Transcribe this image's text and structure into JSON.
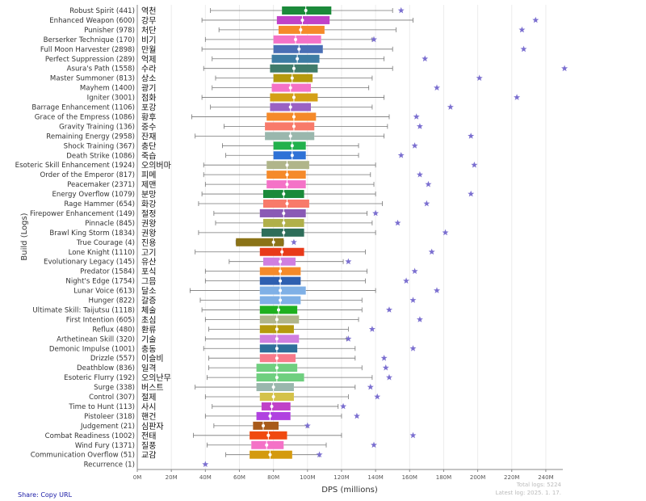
{
  "ui": {
    "share_text": "Share: Copy URL",
    "total_logs": "Total logs: 5224",
    "latest_log": "Latest log: 2025. 1. 17."
  },
  "chart_data": {
    "type": "boxplot",
    "orientation": "horizontal",
    "xlabel": "DPS (millions)",
    "ylabel": "Build (Logs)",
    "xlim": [
      0,
      250
    ],
    "x_ticks": [
      0,
      20,
      40,
      60,
      80,
      100,
      120,
      140,
      160,
      180,
      200,
      220,
      240
    ],
    "x_tick_labels": [
      "0M",
      "20M",
      "40M",
      "60M",
      "80M",
      "100M",
      "120M",
      "140M",
      "160M",
      "180M",
      "200M",
      "220M",
      "240M"
    ],
    "grid": "vertical",
    "outlier_marker": "star",
    "outlier_color": "#7b6fd0",
    "items": [
      {
        "label": "Robust Spirit (441)",
        "kr": "역천",
        "color": "#1b8a3a",
        "min": 43,
        "q1": 85,
        "median": 99,
        "q3": 114,
        "max": 150,
        "mean": 99,
        "outliers": [
          155
        ]
      },
      {
        "label": "Enhanced Weapon (600)",
        "kr": "강무",
        "color": "#c042c8",
        "min": 38,
        "q1": 82,
        "median": 97,
        "q3": 113,
        "max": 162,
        "mean": 97,
        "outliers": [
          234
        ]
      },
      {
        "label": "Punisher (978)",
        "kr": "처단",
        "color": "#f58a2a",
        "min": 48,
        "q1": 83,
        "median": 96,
        "q3": 110,
        "max": 152,
        "mean": 96,
        "outliers": [
          226
        ]
      },
      {
        "label": "Berserker Technique (170)",
        "kr": "비기",
        "color": "#f472c7",
        "min": 40,
        "q1": 80,
        "median": 93,
        "q3": 108,
        "max": 138,
        "mean": 93,
        "outliers": [
          139
        ]
      },
      {
        "label": "Full Moon Harvester (2898)",
        "kr": "만월",
        "color": "#4a6fb5",
        "min": 38,
        "q1": 80,
        "median": 95,
        "q3": 109,
        "max": 150,
        "mean": 95,
        "outliers": [
          227
        ]
      },
      {
        "label": "Perfect Suppression (289)",
        "kr": "억제",
        "color": "#3d7ca3",
        "min": 44,
        "q1": 79,
        "median": 94,
        "q3": 107,
        "max": 145,
        "mean": 94,
        "outliers": [
          169
        ]
      },
      {
        "label": "Asura's Path (1558)",
        "kr": "수라",
        "color": "#3f7b6a",
        "min": 39,
        "q1": 78,
        "median": 92,
        "q3": 106,
        "max": 150,
        "mean": 92,
        "outliers": [
          251
        ]
      },
      {
        "label": "Master Summoner (813)",
        "kr": "상소",
        "color": "#b59a0e",
        "min": 46,
        "q1": 80,
        "median": 91,
        "q3": 103,
        "max": 138,
        "mean": 91,
        "outliers": [
          201
        ]
      },
      {
        "label": "Mayhem (1400)",
        "kr": "광기",
        "color": "#f472c7",
        "min": 44,
        "q1": 79,
        "median": 90,
        "q3": 102,
        "max": 136,
        "mean": 90,
        "outliers": [
          176
        ]
      },
      {
        "label": "Igniter (3001)",
        "kr": "점화",
        "color": "#d4a017",
        "min": 38,
        "q1": 78,
        "median": 92,
        "q3": 106,
        "max": 145,
        "mean": 92,
        "outliers": [
          223
        ]
      },
      {
        "label": "Barrage Enhancement (1106)",
        "kr": "포강",
        "color": "#9a62c4",
        "min": 43,
        "q1": 78,
        "median": 90,
        "q3": 102,
        "max": 138,
        "mean": 90,
        "outliers": [
          184
        ]
      },
      {
        "label": "Grace of the Empress (1086)",
        "kr": "황후",
        "color": "#f58a2a",
        "min": 32,
        "q1": 76,
        "median": 92,
        "q3": 105,
        "max": 148,
        "mean": 92,
        "outliers": [
          164
        ]
      },
      {
        "label": "Gravity Training (136)",
        "kr": "중수",
        "color": "#f87a6a",
        "min": 51,
        "q1": 75,
        "median": 92,
        "q3": 104,
        "max": 147,
        "mean": 92,
        "outliers": [
          166
        ]
      },
      {
        "label": "Remaining Energy (2958)",
        "kr": "잔재",
        "color": "#9ab7ad",
        "min": 34,
        "q1": 75,
        "median": 90,
        "q3": 104,
        "max": 145,
        "mean": 90,
        "outliers": [
          196
        ]
      },
      {
        "label": "Shock Training (367)",
        "kr": "충단",
        "color": "#22b14c",
        "min": 50,
        "q1": 80,
        "median": 91,
        "q3": 99,
        "max": 130,
        "mean": 91,
        "outliers": [
          163
        ]
      },
      {
        "label": "Death Strike (1086)",
        "kr": "죽습",
        "color": "#2e72d6",
        "min": 52,
        "q1": 80,
        "median": 91,
        "q3": 99,
        "max": 130,
        "mean": 91,
        "outliers": [
          155
        ]
      },
      {
        "label": "Esoteric Skill Enhancement (1924)",
        "kr": "오의버마",
        "color": "#b0b58a",
        "min": 39,
        "q1": 76,
        "median": 88,
        "q3": 101,
        "max": 140,
        "mean": 88,
        "outliers": [
          198
        ]
      },
      {
        "label": "Order of the Emperor (817)",
        "kr": "피메",
        "color": "#f58a2a",
        "min": 39,
        "q1": 76,
        "median": 88,
        "q3": 99,
        "max": 137,
        "mean": 88,
        "outliers": [
          166
        ]
      },
      {
        "label": "Peacemaker (2371)",
        "kr": "제맨",
        "color": "#f472c7",
        "min": 40,
        "q1": 76,
        "median": 88,
        "q3": 99,
        "max": 139,
        "mean": 88,
        "outliers": [
          171
        ]
      },
      {
        "label": "Energy Overflow (1079)",
        "kr": "분망",
        "color": "#1b8a3a",
        "min": 38,
        "q1": 74,
        "median": 86,
        "q3": 98,
        "max": 140,
        "mean": 86,
        "outliers": [
          196
        ]
      },
      {
        "label": "Rage Hammer (654)",
        "kr": "화강",
        "color": "#f87a6a",
        "min": 36,
        "q1": 74,
        "median": 88,
        "q3": 101,
        "max": 144,
        "mean": 88,
        "outliers": [
          170
        ]
      },
      {
        "label": "Firepower Enhancement (149)",
        "kr": "절정",
        "color": "#8a5ab5",
        "min": 45,
        "q1": 72,
        "median": 86,
        "q3": 99,
        "max": 135,
        "mean": 86,
        "outliers": [
          140
        ]
      },
      {
        "label": "Pinnacle (845)",
        "kr": "권왕",
        "color": "#b0b04a",
        "min": 46,
        "q1": 74,
        "median": 86,
        "q3": 98,
        "max": 138,
        "mean": 86,
        "outliers": [
          153
        ]
      },
      {
        "label": "Brawl King Storm (1834)",
        "kr": "권왕",
        "color": "#2e6e5a",
        "min": 36,
        "q1": 73,
        "median": 86,
        "q3": 98,
        "max": 140,
        "mean": 86,
        "outliers": [
          181
        ]
      },
      {
        "label": "True Courage (4)",
        "kr": "진용",
        "color": "#8b7317",
        "min": 58,
        "q1": 58,
        "median": 80,
        "q3": 86,
        "max": 86,
        "mean": 80,
        "outliers": [
          92
        ]
      },
      {
        "label": "Lone Knight (1110)",
        "kr": "고기",
        "color": "#e83a1a",
        "min": 34,
        "q1": 72,
        "median": 85,
        "q3": 98,
        "max": 134,
        "mean": 85,
        "outliers": [
          173
        ]
      },
      {
        "label": "Evolutionary Legacy (145)",
        "kr": "유산",
        "color": "#d07fe0",
        "min": 54,
        "q1": 74,
        "median": 84,
        "q3": 93,
        "max": 121,
        "mean": 84,
        "outliers": [
          124
        ]
      },
      {
        "label": "Predator (1584)",
        "kr": "포식",
        "color": "#f58a2a",
        "min": 40,
        "q1": 72,
        "median": 84,
        "q3": 96,
        "max": 135,
        "mean": 84,
        "outliers": [
          163
        ]
      },
      {
        "label": "Night's Edge (1754)",
        "kr": "그믐",
        "color": "#2e5fb0",
        "min": 40,
        "q1": 72,
        "median": 84,
        "q3": 96,
        "max": 134,
        "mean": 84,
        "outliers": [
          158
        ]
      },
      {
        "label": "Lunar Voice (613)",
        "kr": "달소",
        "color": "#7fb0e6",
        "min": 31,
        "q1": 72,
        "median": 84,
        "q3": 99,
        "max": 140,
        "mean": 84,
        "outliers": [
          176
        ]
      },
      {
        "label": "Hunger (822)",
        "kr": "갈증",
        "color": "#7fb0e6",
        "min": 37,
        "q1": 72,
        "median": 84,
        "q3": 96,
        "max": 132,
        "mean": 84,
        "outliers": [
          162
        ]
      },
      {
        "label": "Ultimate Skill: Taijutsu (1118)",
        "kr": "체술",
        "color": "#1fb01f",
        "min": 38,
        "q1": 72,
        "median": 83,
        "q3": 94,
        "max": 132,
        "mean": 83,
        "outliers": [
          148
        ]
      },
      {
        "label": "First Intention (605)",
        "kr": "초심",
        "color": "#b0b58a",
        "min": 40,
        "q1": 72,
        "median": 82,
        "q3": 95,
        "max": 130,
        "mean": 82,
        "outliers": [
          166
        ]
      },
      {
        "label": "Reflux (480)",
        "kr": "환류",
        "color": "#b59a0e",
        "min": 42,
        "q1": 72,
        "median": 82,
        "q3": 92,
        "max": 124,
        "mean": 82,
        "outliers": [
          138
        ]
      },
      {
        "label": "Arthetinean Skill (320)",
        "kr": "기술",
        "color": "#d07fe0",
        "min": 40,
        "q1": 72,
        "median": 82,
        "q3": 95,
        "max": 123,
        "mean": 82,
        "outliers": [
          124
        ]
      },
      {
        "label": "Demonic Impulse (1001)",
        "kr": "충동",
        "color": "#2e6e9a",
        "min": 39,
        "q1": 72,
        "median": 82,
        "q3": 94,
        "max": 128,
        "mean": 82,
        "outliers": [
          162
        ]
      },
      {
        "label": "Drizzle (557)",
        "kr": "이슬비",
        "color": "#f87a8a",
        "min": 42,
        "q1": 72,
        "median": 82,
        "q3": 93,
        "max": 128,
        "mean": 82,
        "outliers": [
          145
        ]
      },
      {
        "label": "Deathblow (836)",
        "kr": "일격",
        "color": "#6fcf7f",
        "min": 42,
        "q1": 70,
        "median": 82,
        "q3": 94,
        "max": 132,
        "mean": 82,
        "outliers": [
          146
        ]
      },
      {
        "label": "Esoteric Flurry (192)",
        "kr": "오의난무",
        "color": "#6fcf7f",
        "min": 41,
        "q1": 70,
        "median": 82,
        "q3": 98,
        "max": 138,
        "mean": 82,
        "outliers": [
          148
        ]
      },
      {
        "label": "Surge (338)",
        "kr": "버스트",
        "color": "#9ab7ad",
        "min": 34,
        "q1": 70,
        "median": 80,
        "q3": 92,
        "max": 128,
        "mean": 80,
        "outliers": [
          137
        ]
      },
      {
        "label": "Control (307)",
        "kr": "절제",
        "color": "#d4c24a",
        "min": 40,
        "q1": 72,
        "median": 80,
        "q3": 92,
        "max": 124,
        "mean": 80,
        "outliers": [
          141
        ]
      },
      {
        "label": "Time to Hunt (113)",
        "kr": "사시",
        "color": "#c042c8",
        "min": 44,
        "q1": 73,
        "median": 79,
        "q3": 90,
        "max": 118,
        "mean": 79,
        "outliers": [
          121
        ]
      },
      {
        "label": "Pistoleer (318)",
        "kr": "핸건",
        "color": "#b042e0",
        "min": 40,
        "q1": 70,
        "median": 78,
        "q3": 90,
        "max": 120,
        "mean": 78,
        "outliers": [
          129
        ]
      },
      {
        "label": "Judgement (21)",
        "kr": "심판자",
        "color": "#a85a1a",
        "min": 45,
        "q1": 68,
        "median": 74,
        "q3": 83,
        "max": 100,
        "mean": 74,
        "outliers": [
          100
        ]
      },
      {
        "label": "Combat Readiness (1002)",
        "kr": "전태",
        "color": "#f04a10",
        "min": 33,
        "q1": 66,
        "median": 77,
        "q3": 88,
        "max": 120,
        "mean": 77,
        "outliers": [
          162
        ]
      },
      {
        "label": "Wind Fury (1371)",
        "kr": "질풍",
        "color": "#f472c7",
        "min": 41,
        "q1": 67,
        "median": 76,
        "q3": 86,
        "max": 111,
        "mean": 76,
        "outliers": [
          139
        ]
      },
      {
        "label": "Communication Overflow (51)",
        "kr": "교감",
        "color": "#d49a0e",
        "min": 52,
        "q1": 66,
        "median": 78,
        "q3": 91,
        "max": 107,
        "mean": 78,
        "outliers": [
          107
        ]
      },
      {
        "label": "Recurrence (1)",
        "kr": "",
        "color": "#7b6fd0",
        "min": null,
        "q1": null,
        "median": null,
        "q3": null,
        "max": null,
        "mean": null,
        "outliers": [
          40
        ]
      }
    ]
  }
}
